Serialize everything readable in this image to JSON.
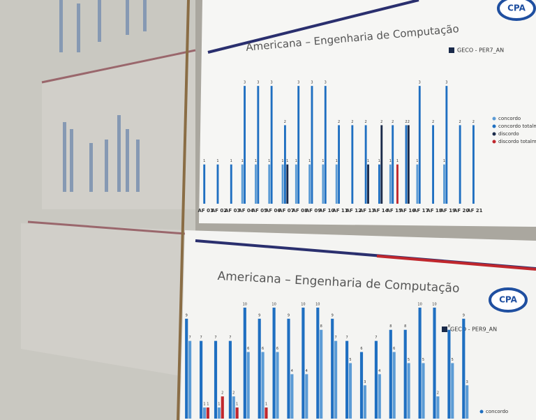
{
  "chart_data": [
    {
      "type": "bar",
      "title": "Americana – Engenharia de Computação",
      "legend_title": "GECO - PER7_AN",
      "logo": "CPA",
      "categories": [
        "AF 01",
        "AF 02",
        "AF 03",
        "AF 04",
        "AF 05",
        "AF 06",
        "AF 07",
        "AF 08",
        "AF 09",
        "AF 10",
        "AF 11",
        "AF 12",
        "AF 13",
        "AF 14",
        "AF 15",
        "AF 16",
        "AF 17",
        "AF 18",
        "AF 19",
        "AF 20",
        "AF 21"
      ],
      "ylim": [
        0,
        3.5
      ],
      "series": [
        {
          "name": "concordo",
          "color": "#5b9bd5",
          "values": [
            null,
            null,
            null,
            1,
            1,
            1,
            1,
            1,
            1,
            1,
            1,
            null,
            null,
            null,
            1,
            null,
            1,
            null,
            1,
            null,
            null
          ]
        },
        {
          "name": "concordo totalmente",
          "color": "#1f6fc1",
          "values": [
            1,
            1,
            1,
            3,
            3,
            3,
            2,
            3,
            3,
            3,
            2,
            2,
            2,
            1,
            2,
            2,
            3,
            2,
            3,
            2,
            2
          ]
        },
        {
          "name": "discordo",
          "color": "#1a2a4a",
          "values": [
            null,
            null,
            null,
            null,
            null,
            null,
            1,
            null,
            null,
            null,
            null,
            null,
            1,
            2,
            null,
            2,
            null,
            null,
            null,
            null,
            null
          ]
        },
        {
          "name": "discordo totalmente",
          "color": "#c0272d",
          "values": [
            null,
            null,
            null,
            null,
            null,
            null,
            null,
            null,
            null,
            null,
            null,
            null,
            null,
            null,
            1,
            null,
            null,
            null,
            null,
            null,
            null
          ]
        }
      ]
    },
    {
      "type": "bar",
      "title": "Americana – Engenharia de Computação",
      "legend_title": "GECO - PER9_AN",
      "logo": "CPA",
      "categories": [
        null,
        null,
        null,
        null,
        null,
        null,
        null,
        null,
        null,
        null,
        null,
        null,
        null,
        null,
        null,
        null,
        null,
        null,
        null,
        null
      ],
      "ylim": [
        0,
        11
      ],
      "series": [
        {
          "name": "concordo",
          "color": "#1f6fc1",
          "values": [
            9,
            7,
            7,
            7,
            10,
            9,
            10,
            9,
            10,
            10,
            9,
            7,
            6,
            7,
            8,
            8,
            10,
            10,
            8,
            9
          ]
        },
        {
          "color": "#5b9bd5",
          "values": [
            7,
            1,
            1,
            2,
            6,
            6,
            6,
            4,
            4,
            8,
            7,
            5,
            3,
            4,
            6,
            5,
            5,
            2,
            5,
            3
          ]
        },
        {
          "color": "#c0272d",
          "values": [
            null,
            1,
            2,
            1,
            null,
            1,
            null,
            null,
            null,
            null,
            null,
            null,
            null,
            null,
            null,
            null,
            null,
            null,
            null,
            null
          ]
        }
      ]
    }
  ]
}
